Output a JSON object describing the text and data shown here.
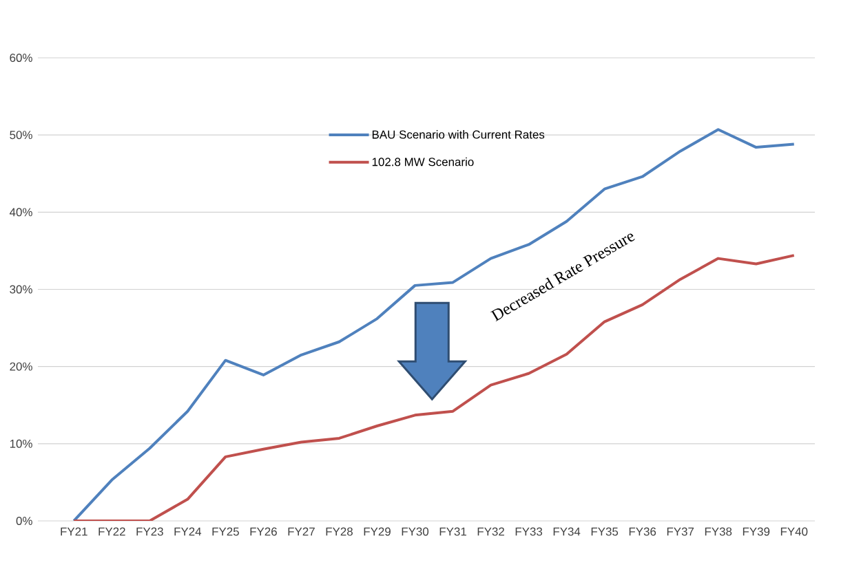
{
  "chart_data": {
    "type": "line",
    "categories": [
      "FY21",
      "FY22",
      "FY23",
      "FY24",
      "FY25",
      "FY26",
      "FY27",
      "FY28",
      "FY29",
      "FY30",
      "FY31",
      "FY32",
      "FY33",
      "FY34",
      "FY35",
      "FY36",
      "FY37",
      "FY38",
      "FY39",
      "FY40"
    ],
    "series": [
      {
        "name": "BAU Scenario with Current Rates",
        "color": "#4f81bd",
        "values": [
          0,
          5.3,
          9.4,
          14.2,
          20.8,
          18.9,
          21.5,
          23.2,
          26.2,
          30.5,
          30.9,
          34.0,
          35.8,
          38.8,
          43.0,
          44.6,
          47.9,
          50.7,
          48.4,
          48.8
        ]
      },
      {
        "name": "102.8 MW Scenario",
        "color": "#c0504d",
        "values": [
          0,
          0,
          0,
          2.8,
          8.3,
          9.3,
          10.2,
          10.7,
          12.3,
          13.7,
          14.2,
          17.6,
          19.1,
          21.6,
          25.8,
          28.0,
          31.3,
          34.0,
          33.3,
          34.4
        ]
      }
    ],
    "ylim": [
      0,
      60
    ],
    "yticks": [
      {
        "value": 0,
        "label": "0%"
      },
      {
        "value": 10,
        "label": "10%"
      },
      {
        "value": 20,
        "label": "20%"
      },
      {
        "value": 30,
        "label": "30%"
      },
      {
        "value": 40,
        "label": "40%"
      },
      {
        "value": 50,
        "label": "50%"
      },
      {
        "value": 60,
        "label": "60%"
      }
    ],
    "grid": "y",
    "legend": "top",
    "marker": "none",
    "line_style": "solid",
    "annotations": [
      {
        "text": "Decreased Rate Pressure"
      }
    ]
  }
}
